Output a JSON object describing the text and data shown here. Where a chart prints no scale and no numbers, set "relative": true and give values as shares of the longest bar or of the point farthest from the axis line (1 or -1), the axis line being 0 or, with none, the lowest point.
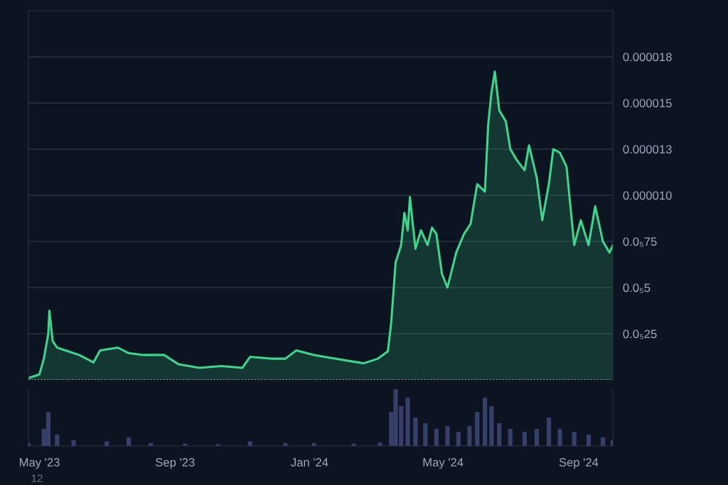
{
  "chart_data": [
    {
      "type": "area",
      "x": [
        "2023-04-21",
        "2023-05-01",
        "2023-05-05",
        "2023-05-09",
        "2023-05-10",
        "2023-05-13",
        "2023-05-17",
        "2023-05-27",
        "2023-06-06",
        "2023-06-19",
        "2023-06-25",
        "2023-07-11",
        "2023-07-21",
        "2023-08-03",
        "2023-08-22",
        "2023-09-04",
        "2023-09-23",
        "2023-10-13",
        "2023-11-01",
        "2023-11-08",
        "2023-11-27",
        "2023-12-10",
        "2023-12-20",
        "2024-01-05",
        "2024-01-24",
        "2024-02-19",
        "2024-03-03",
        "2024-03-12",
        "2024-03-15",
        "2024-03-19",
        "2024-03-24",
        "2024-03-27",
        "2024-03-30",
        "2024-04-01",
        "2024-04-06",
        "2024-04-11",
        "2024-04-17",
        "2024-04-21",
        "2024-04-25",
        "2024-04-30",
        "2024-05-05",
        "2024-05-13",
        "2024-05-20",
        "2024-05-26",
        "2024-06-01",
        "2024-06-08",
        "2024-06-11",
        "2024-06-14",
        "2024-06-17",
        "2024-06-21",
        "2024-06-27",
        "2024-07-01",
        "2024-07-07",
        "2024-07-14",
        "2024-07-18",
        "2024-07-25",
        "2024-07-30",
        "2024-08-05",
        "2024-08-09",
        "2024-08-15",
        "2024-08-21",
        "2024-08-28",
        "2024-09-03",
        "2024-09-10",
        "2024-09-16",
        "2024-09-23",
        "2024-09-29",
        "2024-10-02"
      ],
      "series": [
        {
          "color": "#3dd68c",
          "values": [
            1e-07,
            3e-07,
            1.15e-06,
            2.5e-06,
            3.75e-06,
            2.1e-06,
            1.75e-06,
            1.55e-06,
            1.35e-06,
            9.5e-07,
            1.6e-06,
            1.75e-06,
            1.45e-06,
            1.35e-06,
            1.35e-06,
            8.5e-07,
            6.5e-07,
            7.5e-07,
            6.5e-07,
            1.25e-06,
            1.15e-06,
            1.15e-06,
            1.6e-06,
            1.35e-06,
            1.15e-06,
            9e-07,
            1.15e-06,
            1.55e-06,
            3.1e-06,
            6.35e-06,
            7.3e-06,
            9.05e-06,
            8.1e-06,
            9.9e-06,
            7.1e-06,
            8.1e-06,
            7.3e-06,
            8.25e-06,
            7.9e-06,
            5.75e-06,
            5e-06,
            6.9e-06,
            7.9e-06,
            8.45e-06,
            1.06e-05,
            1.02e-05,
            1.385e-05,
            1.56e-05,
            1.67e-05,
            1.46e-05,
            1.4e-05,
            1.25e-05,
            1.19e-05,
            1.135e-05,
            1.27e-05,
            1.095e-05,
            8.65e-06,
            1.06e-05,
            1.25e-05,
            1.23e-05,
            1.155e-05,
            7.3e-06,
            8.65e-06,
            7.3e-06,
            9.4e-06,
            7.5e-06,
            6.9e-06,
            7.3e-06
          ]
        }
      ],
      "xlim": [
        "2023-04-21",
        "2024-10-02"
      ],
      "ylim": [
        0,
        2e-05
      ],
      "yticks": [
        {
          "value": 2.5e-06,
          "label": "0.0₅25"
        },
        {
          "value": 5e-06,
          "label": "0.0₅5"
        },
        {
          "value": 7.5e-06,
          "label": "0.0₅75"
        },
        {
          "value": 1e-05,
          "label": "0.000010"
        },
        {
          "value": 1.25e-05,
          "label": "0.000013"
        },
        {
          "value": 1.5e-05,
          "label": "0.000015"
        },
        {
          "value": 1.75e-05,
          "label": "0.000018"
        }
      ],
      "grid": "y",
      "tick_labels": "y",
      "ref_lines": [
        {
          "axis": "y",
          "value": 0,
          "color": "#c8ccd4",
          "line_style": "dotted"
        }
      ]
    },
    {
      "type": "bar",
      "relative": true,
      "x": [
        "2023-04-21",
        "2023-05-05",
        "2023-05-09",
        "2023-05-17",
        "2023-06-01",
        "2023-07-01",
        "2023-07-21",
        "2023-08-10",
        "2023-09-10",
        "2023-10-10",
        "2023-11-08",
        "2023-12-10",
        "2024-01-05",
        "2024-02-10",
        "2024-03-05",
        "2024-03-15",
        "2024-03-19",
        "2024-03-24",
        "2024-03-30",
        "2024-04-06",
        "2024-04-15",
        "2024-04-25",
        "2024-05-05",
        "2024-05-15",
        "2024-05-25",
        "2024-06-01",
        "2024-06-08",
        "2024-06-14",
        "2024-06-21",
        "2024-07-01",
        "2024-07-14",
        "2024-07-25",
        "2024-08-05",
        "2024-08-15",
        "2024-08-28",
        "2024-09-10",
        "2024-09-23",
        "2024-10-02"
      ],
      "series": [
        {
          "color": "#36406a",
          "values": [
            0.05,
            0.3,
            0.6,
            0.2,
            0.1,
            0.08,
            0.15,
            0.05,
            0.04,
            0.03,
            0.08,
            0.05,
            0.05,
            0.04,
            0.06,
            0.6,
            1.0,
            0.7,
            0.85,
            0.5,
            0.4,
            0.3,
            0.35,
            0.25,
            0.35,
            0.6,
            0.85,
            0.7,
            0.4,
            0.3,
            0.25,
            0.3,
            0.5,
            0.3,
            0.25,
            0.2,
            0.15,
            0.1
          ]
        }
      ],
      "xlim": [
        "2023-04-21",
        "2024-10-02"
      ],
      "xticks": [
        {
          "value": "2023-05-01",
          "label": "May '23"
        },
        {
          "value": "2023-09-01",
          "label": "Sep '23"
        },
        {
          "value": "2024-01-01",
          "label": "Jan '24"
        },
        {
          "value": "2024-05-01",
          "label": "May '24"
        },
        {
          "value": "2024-09-01",
          "label": "Sep '24"
        }
      ],
      "tick_labels": "x",
      "annotations": [
        "12"
      ]
    }
  ]
}
